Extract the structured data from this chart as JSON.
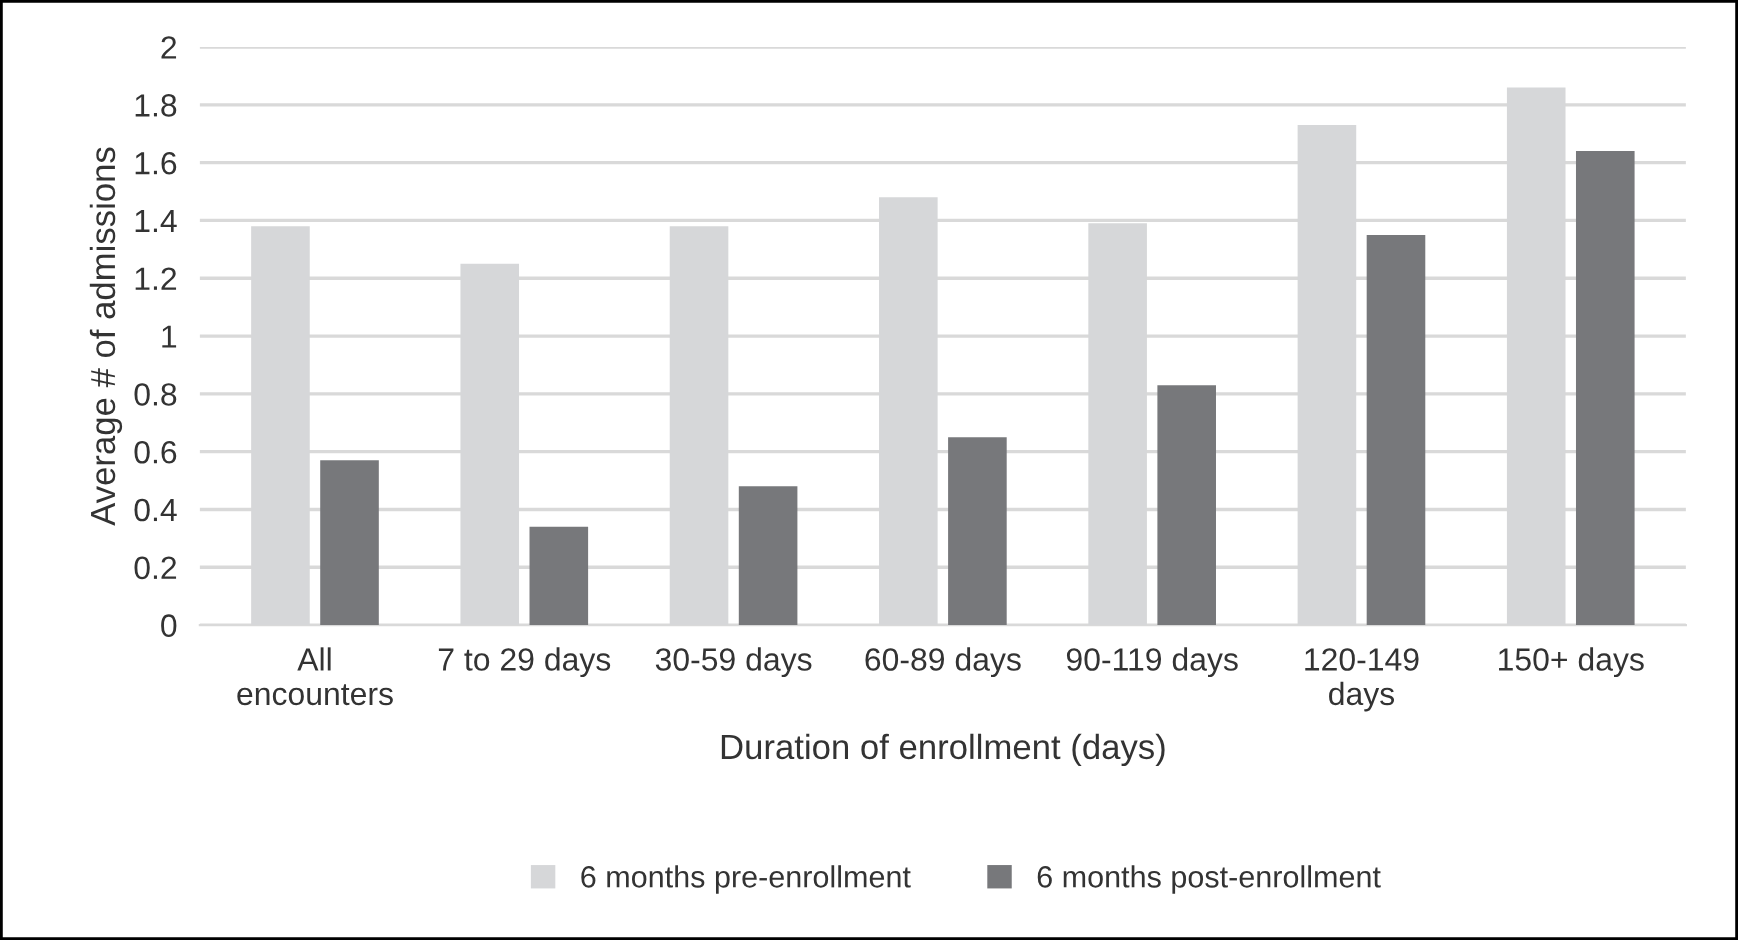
{
  "chart_data": {
    "type": "bar",
    "xlabel": "Duration of enrollment (days)",
    "ylabel": "Average # of admissions",
    "categories": [
      "All\nencounters",
      "7 to 29 days",
      "30-59 days",
      "60-89 days",
      "90-119 days",
      "120-149\ndays",
      "150+ days"
    ],
    "series": [
      {
        "name": "6 months pre-enrollment",
        "color": "#d6d7d9",
        "values": [
          1.38,
          1.25,
          1.38,
          1.48,
          1.39,
          1.73,
          1.86
        ]
      },
      {
        "name": "6 months post-enrollment",
        "color": "#77787b",
        "values": [
          0.57,
          0.34,
          0.48,
          0.65,
          0.83,
          1.35,
          1.64
        ]
      }
    ],
    "ylim": [
      0,
      2
    ],
    "yticks": [
      0,
      {
        "value": 0.2,
        "label": "0.2"
      },
      {
        "value": 0.4,
        "label": "0.4"
      },
      {
        "value": 0.6,
        "label": "0.6"
      },
      {
        "value": 0.8,
        "label": "0.8"
      },
      1,
      {
        "value": 1.2,
        "label": "1.2"
      },
      {
        "value": 1.4,
        "label": "1.4"
      },
      {
        "value": 1.6,
        "label": "1.6"
      },
      {
        "value": 1.8,
        "label": "1.8"
      },
      2
    ],
    "grid": "y",
    "legend": "bottom"
  }
}
